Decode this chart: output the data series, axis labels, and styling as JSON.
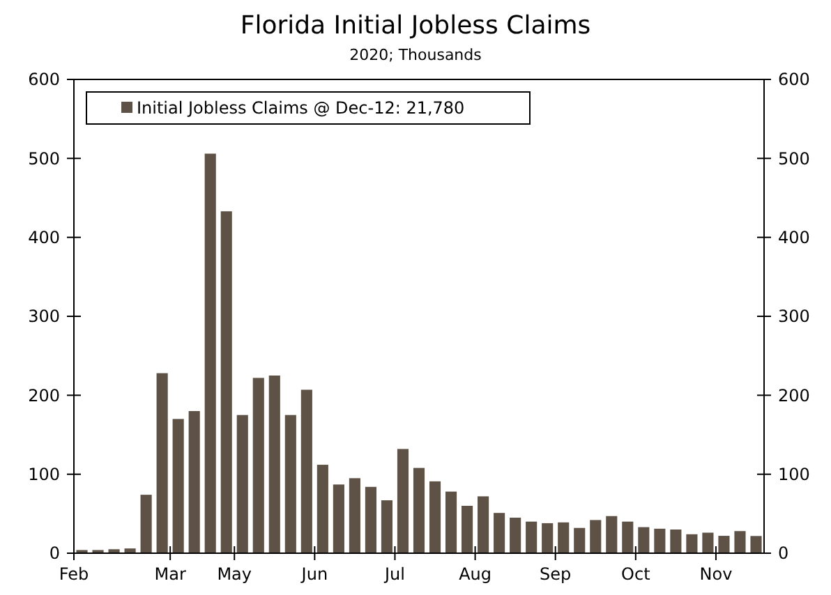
{
  "chart_data": {
    "type": "bar",
    "title": "Florida Initial Jobless Claims",
    "subtitle": "2020; Thousands",
    "categories": [
      "Feb",
      null,
      null,
      null,
      null,
      null,
      "Mar",
      null,
      null,
      null,
      "May",
      null,
      null,
      null,
      null,
      "Jun",
      null,
      null,
      null,
      null,
      "Jul",
      null,
      null,
      null,
      null,
      "Aug",
      null,
      null,
      null,
      null,
      "Sep",
      null,
      null,
      null,
      null,
      "Oct",
      null,
      null,
      null,
      null,
      "Nov",
      null,
      null
    ],
    "series": [
      {
        "name": "Initial Jobless Claims @ Dec-12: 21,780",
        "color": "#5e5246",
        "values": [
          4,
          4,
          5,
          6,
          74,
          228,
          170,
          180,
          506,
          433,
          175,
          222,
          225,
          175,
          207,
          112,
          87,
          95,
          84,
          67,
          132,
          108,
          91,
          78,
          60,
          72,
          51,
          45,
          40,
          38,
          39,
          32,
          42,
          47,
          40,
          33,
          31,
          30,
          24,
          26,
          22,
          28,
          21.78
        ]
      }
    ],
    "ylim": [
      0,
      600
    ],
    "yticks": [
      0,
      100,
      200,
      300,
      400,
      500,
      600
    ],
    "y2lim": [
      0,
      600
    ],
    "y2ticks": [
      0,
      100,
      200,
      300,
      400,
      500,
      600
    ],
    "grid": false,
    "legend": "top left"
  }
}
